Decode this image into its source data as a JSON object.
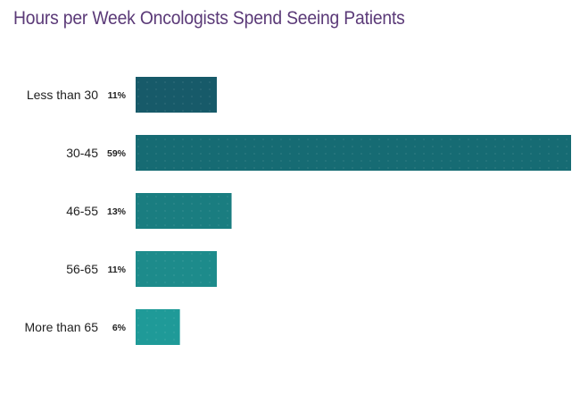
{
  "chart_data": {
    "type": "bar",
    "orientation": "horizontal",
    "title": "Hours per Week Oncologists Spend Seeing Patients",
    "categories": [
      "Less than 30",
      "30-45",
      "46-55",
      "56-65",
      "More than 65"
    ],
    "values": [
      11,
      59,
      13,
      11,
      6
    ],
    "value_labels": [
      "11%",
      "59%",
      "13%",
      "11%",
      "6%"
    ],
    "unit": "%",
    "xlim": [
      0,
      59
    ],
    "grid": false,
    "legend": "none",
    "bar_colors": [
      "#175a69",
      "#166b73",
      "#1a7d80",
      "#1d8b8b",
      "#1f9a98"
    ]
  }
}
